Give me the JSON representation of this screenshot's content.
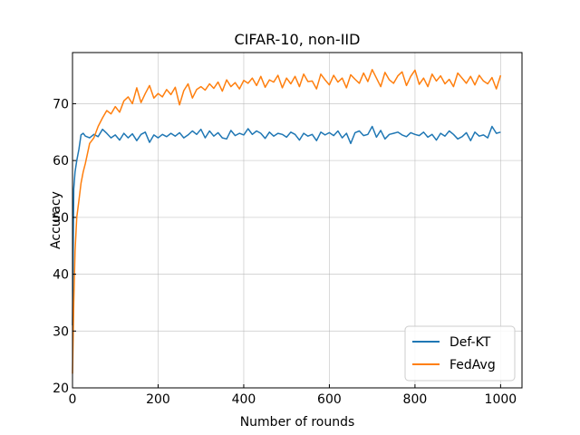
{
  "chart_data": {
    "type": "line",
    "title": "CIFAR-10, non-IID",
    "xlabel": "Number of rounds",
    "ylabel": "Accuracy",
    "xlim": [
      0,
      1050
    ],
    "ylim": [
      20,
      79
    ],
    "xticks": [
      0,
      200,
      400,
      600,
      800,
      1000
    ],
    "yticks": [
      20,
      30,
      40,
      50,
      60,
      70
    ],
    "grid": true,
    "legend_position": "lower right",
    "series": [
      {
        "name": "Def-KT",
        "color": "#1f77b4",
        "x": [
          0,
          3,
          6,
          10,
          15,
          20,
          25,
          30,
          40,
          50,
          60,
          70,
          80,
          90,
          100,
          110,
          120,
          130,
          140,
          150,
          160,
          170,
          180,
          190,
          200,
          210,
          220,
          230,
          240,
          250,
          260,
          270,
          280,
          290,
          300,
          310,
          320,
          330,
          340,
          350,
          360,
          370,
          380,
          390,
          400,
          410,
          420,
          430,
          440,
          450,
          460,
          470,
          480,
          490,
          500,
          510,
          520,
          530,
          540,
          550,
          560,
          570,
          580,
          590,
          600,
          610,
          620,
          630,
          640,
          650,
          660,
          670,
          680,
          690,
          700,
          710,
          720,
          730,
          740,
          750,
          760,
          770,
          780,
          790,
          800,
          810,
          820,
          830,
          840,
          850,
          860,
          870,
          880,
          890,
          900,
          910,
          920,
          930,
          940,
          950,
          960,
          970,
          980,
          990,
          1000
        ],
        "values": [
          31,
          55,
          58,
          60,
          62,
          64.5,
          64.8,
          64.3,
          64.0,
          64.6,
          64.2,
          65.5,
          64.8,
          64.0,
          64.5,
          63.6,
          64.8,
          64.0,
          64.7,
          63.5,
          64.6,
          65.0,
          63.2,
          64.5,
          64.0,
          64.6,
          64.2,
          64.8,
          64.3,
          64.9,
          64.0,
          64.5,
          65.2,
          64.6,
          65.5,
          64.0,
          65.2,
          64.3,
          64.9,
          64.0,
          63.8,
          65.3,
          64.4,
          64.8,
          64.5,
          65.6,
          64.6,
          65.2,
          64.8,
          63.9,
          65.0,
          64.3,
          64.8,
          64.6,
          64.1,
          65.0,
          64.6,
          63.6,
          64.8,
          64.3,
          64.6,
          63.5,
          65.0,
          64.5,
          64.9,
          64.4,
          65.2,
          64.0,
          64.8,
          63.0,
          64.9,
          65.2,
          64.4,
          64.6,
          66.0,
          64.1,
          65.3,
          63.8,
          64.6,
          64.8,
          65.0,
          64.5,
          64.2,
          64.9,
          64.6,
          64.4,
          65.0,
          64.1,
          64.6,
          63.6,
          64.8,
          64.3,
          65.2,
          64.6,
          63.8,
          64.2,
          64.9,
          63.5,
          65.0,
          64.3,
          64.5,
          64.0,
          66.0,
          64.8,
          65.0
        ]
      },
      {
        "name": "FedAvg",
        "color": "#ff7f0e",
        "x": [
          0,
          3,
          6,
          10,
          15,
          20,
          25,
          30,
          40,
          50,
          60,
          70,
          80,
          90,
          100,
          110,
          120,
          130,
          140,
          150,
          160,
          170,
          180,
          190,
          200,
          210,
          220,
          230,
          240,
          250,
          260,
          270,
          280,
          290,
          300,
          310,
          320,
          330,
          340,
          350,
          360,
          370,
          380,
          390,
          400,
          410,
          420,
          430,
          440,
          450,
          460,
          470,
          480,
          490,
          500,
          510,
          520,
          530,
          540,
          550,
          560,
          570,
          580,
          590,
          600,
          610,
          620,
          630,
          640,
          650,
          660,
          670,
          680,
          690,
          700,
          710,
          720,
          730,
          740,
          750,
          760,
          770,
          780,
          790,
          800,
          810,
          820,
          830,
          840,
          850,
          860,
          870,
          880,
          890,
          900,
          910,
          920,
          930,
          940,
          950,
          960,
          970,
          980,
          990,
          1000
        ],
        "values": [
          22.5,
          35,
          44,
          50,
          53,
          56,
          58,
          59.5,
          63,
          64,
          66,
          67.5,
          68.8,
          68.2,
          69.5,
          68.5,
          70.5,
          71.2,
          70.0,
          72.8,
          70.2,
          71.8,
          73.2,
          71.0,
          71.8,
          71.2,
          72.5,
          71.6,
          72.9,
          69.8,
          72.3,
          73.5,
          71.0,
          72.5,
          73.0,
          72.4,
          73.5,
          72.7,
          73.8,
          72.2,
          74.2,
          73.0,
          73.7,
          72.6,
          74.1,
          73.6,
          74.5,
          73.2,
          74.8,
          72.9,
          74.2,
          73.8,
          75.0,
          72.8,
          74.5,
          73.5,
          74.8,
          73.0,
          75.2,
          73.9,
          74.0,
          72.6,
          75.2,
          74.2,
          73.3,
          75.0,
          73.8,
          74.5,
          72.8,
          75.1,
          74.3,
          73.6,
          75.4,
          73.9,
          76.0,
          74.5,
          73.0,
          75.5,
          74.2,
          73.6,
          74.9,
          75.6,
          73.2,
          74.8,
          75.9,
          73.4,
          74.5,
          73.0,
          75.2,
          74.0,
          74.9,
          73.5,
          74.3,
          73.0,
          75.4,
          74.5,
          73.6,
          74.8,
          73.3,
          75.0,
          74.0,
          73.5,
          74.6,
          72.6,
          75.0
        ]
      }
    ]
  }
}
